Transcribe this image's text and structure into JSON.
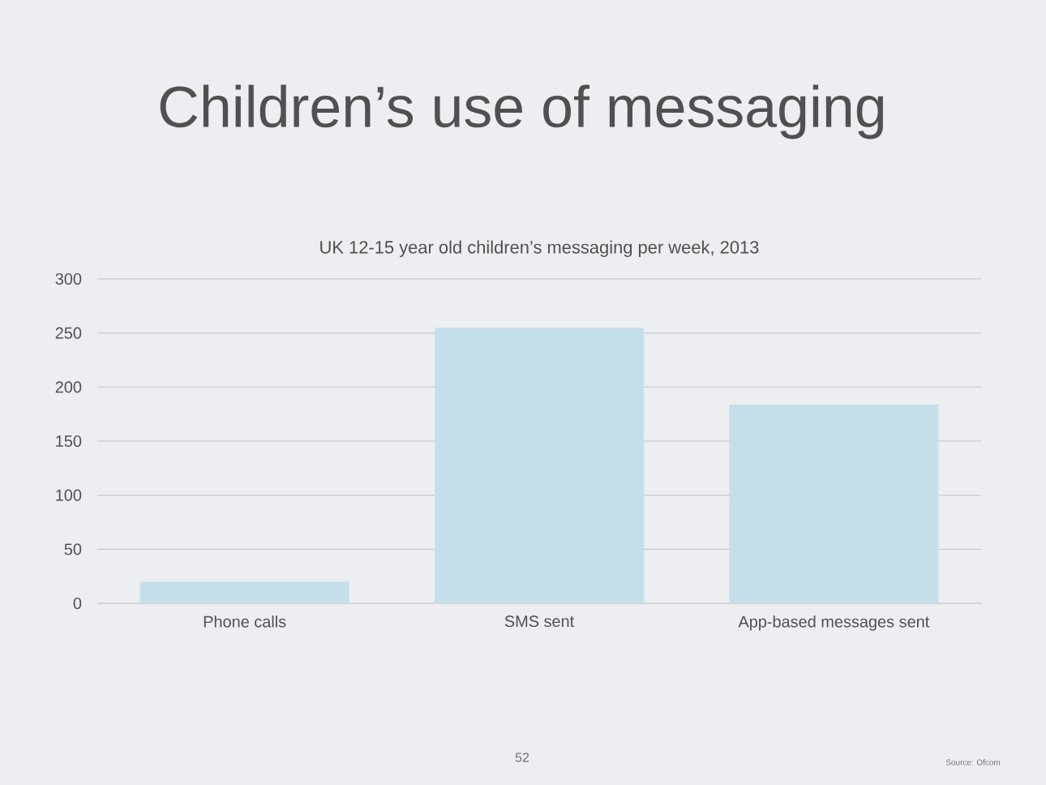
{
  "chart_data": {
    "type": "bar",
    "title": "Children’s use of messaging",
    "subtitle": "UK 12-15 year old children’s messaging per week, 2013",
    "categories": [
      "Phone calls",
      "SMS sent",
      "App-based messages sent"
    ],
    "values": [
      20,
      255,
      184
    ],
    "color": "#c5dfea",
    "ylim": [
      0,
      300
    ],
    "yticks": [
      0,
      50,
      100,
      150,
      200,
      250,
      300
    ],
    "grid": "y",
    "annotations": [
      "52",
      "Source: Ofcom"
    ]
  }
}
